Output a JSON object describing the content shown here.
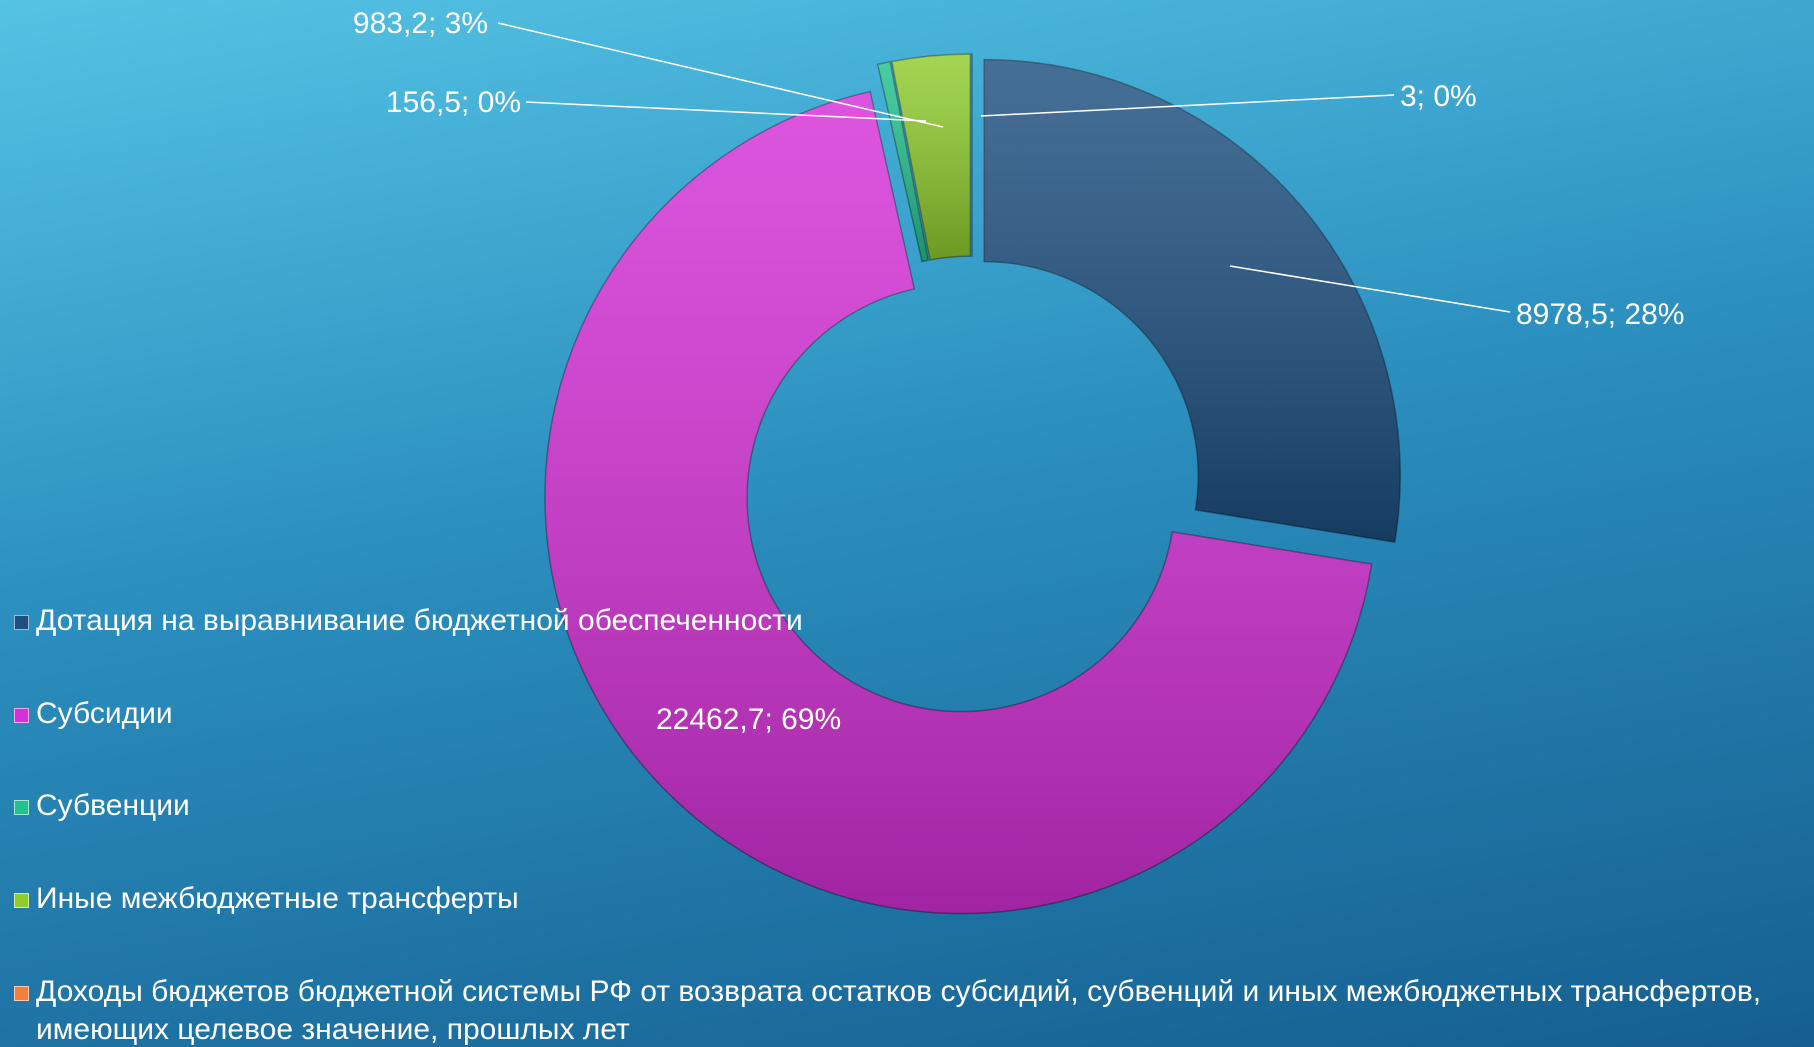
{
  "chart_data": {
    "type": "donut",
    "categories": [
      "Дотация на выравнивание бюджетной обеспеченности",
      "Субсидии",
      "Субвенции",
      "Иные межбюджетные трансферты",
      "Доходы бюджетов бюджетной системы РФ от возврата остатков субсидий, субвенций и иных межбюджетных трансфертов, имеющих целевое значение, прошлых лет"
    ],
    "values": [
      8978.5,
      22462.7,
      156.5,
      983.2,
      3
    ],
    "value_labels": [
      "8978,5; 28%",
      "22462,7; 69%",
      "156,5; 0%",
      "983,2; 3%",
      "3; 0%"
    ],
    "colors": [
      "#1d4f80",
      "#d630d8",
      "#22c28f",
      "#8fcc2c",
      "#f0803c"
    ],
    "legend": "left"
  }
}
